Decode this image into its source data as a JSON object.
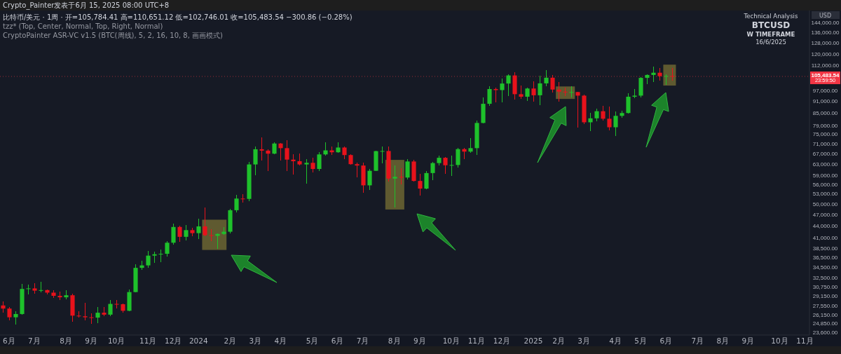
{
  "chart_data": {
    "type": "candlestick",
    "title": "Technical Analysis",
    "subtitle": "BTCUSD",
    "ylabel": "USD",
    "annotations": [
      "Crypto_Painter发表于6月 15, 2025 08:00 UTC+8",
      "比特币/美元 · 1周 · 开=105,784.41 高=110,651.12 低=102,746.01 收=105,483.54 −300.86 (−0.28%)",
      "tzz* (Top, Center, Normal, Top, Right, Normal)",
      "CryptoPainter ASR-VC v1.5 (BTC(周线), 5, 2, 16, 10, 8, 画画模式)",
      "W TIMEFRAME",
      "16/6/2025",
      "23:59:50"
    ],
    "x": [
      "2023-05-29",
      "2023-06-05",
      "2023-06-12",
      "2023-06-19",
      "2023-06-26",
      "2023-07-03",
      "2023-07-10",
      "2023-07-17",
      "2023-07-24",
      "2023-07-31",
      "2023-08-07",
      "2023-08-14",
      "2023-08-21",
      "2023-08-28",
      "2023-09-04",
      "2023-09-11",
      "2023-09-18",
      "2023-09-25",
      "2023-10-02",
      "2023-10-09",
      "2023-10-16",
      "2023-10-23",
      "2023-10-30",
      "2023-11-06",
      "2023-11-13",
      "2023-11-20",
      "2023-11-27",
      "2023-12-04",
      "2023-12-11",
      "2023-12-18",
      "2023-12-25",
      "2024-01-01",
      "2024-01-08",
      "2024-01-15",
      "2024-01-22",
      "2024-01-29",
      "2024-02-05",
      "2024-02-12",
      "2024-02-19",
      "2024-02-26",
      "2024-03-04",
      "2024-03-11",
      "2024-03-18",
      "2024-03-25",
      "2024-04-01",
      "2024-04-08",
      "2024-04-15",
      "2024-04-22",
      "2024-04-29",
      "2024-05-06",
      "2024-05-13",
      "2024-05-20",
      "2024-05-27",
      "2024-06-03",
      "2024-06-10",
      "2024-06-17",
      "2024-06-24",
      "2024-07-01",
      "2024-07-08",
      "2024-07-15",
      "2024-07-22",
      "2024-07-29",
      "2024-08-05",
      "2024-08-12",
      "2024-08-19",
      "2024-08-26",
      "2024-09-02",
      "2024-09-09",
      "2024-09-16",
      "2024-09-23",
      "2024-09-30",
      "2024-10-07",
      "2024-10-14",
      "2024-10-21",
      "2024-10-28",
      "2024-11-04",
      "2024-11-11",
      "2024-11-18",
      "2024-11-25",
      "2024-12-02",
      "2024-12-09",
      "2024-12-16",
      "2024-12-23",
      "2024-12-30",
      "2025-01-06",
      "2025-01-13",
      "2025-01-20",
      "2025-01-27",
      "2025-02-03",
      "2025-02-10",
      "2025-02-17",
      "2025-02-24",
      "2025-03-03",
      "2025-03-10",
      "2025-03-17",
      "2025-03-24",
      "2025-03-31",
      "2025-04-07",
      "2025-04-14",
      "2025-04-21",
      "2025-04-28",
      "2025-05-05",
      "2025-05-12",
      "2025-05-19",
      "2025-05-26",
      "2025-06-02",
      "2025-06-09"
    ],
    "ohlc": [
      [
        27700,
        28400,
        26600,
        27200
      ],
      [
        27200,
        27400,
        25350,
        25850
      ],
      [
        25850,
        26800,
        24800,
        26350
      ],
      [
        26350,
        31400,
        26250,
        30500
      ],
      [
        30500,
        31300,
        29500,
        30600
      ],
      [
        30600,
        31500,
        29700,
        30200
      ],
      [
        30200,
        31800,
        29950,
        30300
      ],
      [
        30300,
        30400,
        29500,
        29850
      ],
      [
        29850,
        30300,
        28900,
        29300
      ],
      [
        29300,
        30000,
        28600,
        29050
      ],
      [
        29050,
        30250,
        28700,
        29400
      ],
      [
        29400,
        29700,
        25200,
        26100
      ],
      [
        26100,
        26800,
        25800,
        26000
      ],
      [
        26000,
        28100,
        25350,
        25850
      ],
      [
        25850,
        26400,
        24900,
        25800
      ],
      [
        25800,
        27450,
        24950,
        26550
      ],
      [
        26550,
        27400,
        26000,
        26250
      ],
      [
        26250,
        28600,
        26000,
        27950
      ],
      [
        27950,
        28600,
        27200,
        27900
      ],
      [
        27900,
        28000,
        26550,
        26850
      ],
      [
        26850,
        30350,
        26800,
        29950
      ],
      [
        29950,
        35200,
        29900,
        34500
      ],
      [
        34500,
        35950,
        34100,
        35000
      ],
      [
        35000,
        38000,
        34550,
        37050
      ],
      [
        37050,
        37950,
        35500,
        37350
      ],
      [
        37350,
        38400,
        35700,
        37450
      ],
      [
        37450,
        40250,
        36800,
        39950
      ],
      [
        39950,
        44700,
        39500,
        43800
      ],
      [
        43800,
        44100,
        40200,
        41350
      ],
      [
        41350,
        44300,
        40500,
        43000
      ],
      [
        43000,
        43600,
        41500,
        42250
      ],
      [
        42250,
        45900,
        40750,
        43950
      ],
      [
        43950,
        49000,
        41500,
        41750
      ],
      [
        41750,
        43200,
        40300,
        41600
      ],
      [
        41600,
        42250,
        38550,
        42050
      ],
      [
        42050,
        43850,
        41850,
        42600
      ],
      [
        42600,
        48600,
        42250,
        48300
      ],
      [
        48300,
        52800,
        47700,
        51700
      ],
      [
        51700,
        52950,
        50600,
        51600
      ],
      [
        51600,
        64000,
        50900,
        63100
      ],
      [
        63100,
        70150,
        59200,
        68950
      ],
      [
        68950,
        73800,
        64600,
        68400
      ],
      [
        68400,
        68950,
        60800,
        67200
      ],
      [
        67200,
        71750,
        66900,
        71300
      ],
      [
        71300,
        71400,
        64500,
        69400
      ],
      [
        69400,
        72750,
        60700,
        64900
      ],
      [
        64900,
        66900,
        59600,
        64300
      ],
      [
        64300,
        67200,
        62800,
        63100
      ],
      [
        63100,
        65000,
        56500,
        63700
      ],
      [
        63700,
        65500,
        60200,
        61450
      ],
      [
        61450,
        67700,
        60700,
        66900
      ],
      [
        66900,
        71950,
        66300,
        68500
      ],
      [
        68500,
        70000,
        66600,
        67750
      ],
      [
        67750,
        71950,
        67600,
        69650
      ],
      [
        69650,
        70200,
        65100,
        66650
      ],
      [
        66650,
        66950,
        63000,
        63200
      ],
      [
        63200,
        63800,
        58400,
        62700
      ],
      [
        62700,
        63800,
        53500,
        55850
      ],
      [
        55850,
        61400,
        54300,
        60800
      ],
      [
        60800,
        68400,
        60600,
        68200
      ],
      [
        68200,
        70000,
        63500,
        68250
      ],
      [
        68250,
        70000,
        57200,
        58100
      ],
      [
        58100,
        62700,
        49000,
        58700
      ],
      [
        58700,
        61800,
        56100,
        58450
      ],
      [
        58450,
        65000,
        57800,
        64200
      ],
      [
        64200,
        64900,
        57100,
        57300
      ],
      [
        57300,
        59800,
        52600,
        54800
      ],
      [
        54800,
        60600,
        54500,
        60000
      ],
      [
        60000,
        64100,
        57500,
        63600
      ],
      [
        63600,
        66500,
        62700,
        65600
      ],
      [
        65600,
        66000,
        59800,
        62800
      ],
      [
        62800,
        66500,
        58900,
        62900
      ],
      [
        62900,
        69400,
        62000,
        69000
      ],
      [
        69000,
        69500,
        65200,
        68000
      ],
      [
        68000,
        73600,
        67500,
        69400
      ],
      [
        69400,
        81500,
        66800,
        80400
      ],
      [
        80400,
        93500,
        80200,
        89900
      ],
      [
        89900,
        99600,
        88800,
        98000
      ],
      [
        98000,
        98800,
        90800,
        97400
      ],
      [
        97400,
        104000,
        90500,
        101200
      ],
      [
        101200,
        106600,
        94200,
        106100
      ],
      [
        106100,
        108300,
        92100,
        95100
      ],
      [
        95100,
        99900,
        92500,
        93700
      ],
      [
        93700,
        98900,
        91300,
        98300
      ],
      [
        98300,
        102700,
        91200,
        94500
      ],
      [
        94500,
        106000,
        89200,
        101300
      ],
      [
        101300,
        109600,
        99500,
        104700
      ],
      [
        104700,
        106400,
        96200,
        97700
      ],
      [
        97700,
        102000,
        91200,
        96500
      ],
      [
        96500,
        98800,
        94100,
        96100
      ],
      [
        96100,
        99500,
        93300,
        96300
      ],
      [
        96300,
        96500,
        78200,
        94300
      ],
      [
        94300,
        95000,
        80000,
        80700
      ],
      [
        80700,
        85300,
        76600,
        82600
      ],
      [
        82600,
        87500,
        81200,
        86100
      ],
      [
        86100,
        88800,
        81600,
        82400
      ],
      [
        82400,
        88500,
        77100,
        78400
      ],
      [
        78400,
        86100,
        74500,
        83800
      ],
      [
        83800,
        86400,
        83000,
        85200
      ],
      [
        85200,
        95700,
        85000,
        93700
      ],
      [
        93700,
        97900,
        92800,
        94300
      ],
      [
        94300,
        104900,
        93400,
        104600
      ],
      [
        104600,
        106700,
        100800,
        106400
      ],
      [
        106400,
        111900,
        102000,
        107800
      ],
      [
        107800,
        110700,
        103100,
        105650
      ],
      [
        105650,
        106800,
        100400,
        105784.41
      ],
      [
        105784.41,
        110651.12,
        102746.01,
        105483.54
      ]
    ],
    "colors": [
      "#e8121b",
      "#e8121b",
      "#1ec12b",
      "#1ec12b",
      "#1ec12b",
      "#e8121b",
      "#1ec12b",
      "#e8121b",
      "#e8121b",
      "#e8121b",
      "#1ec12b",
      "#e8121b",
      "#e8121b",
      "#e8121b",
      "#e8121b",
      "#1ec12b",
      "#e8121b",
      "#1ec12b",
      "#e8121b",
      "#e8121b",
      "#1ec12b",
      "#1ec12b",
      "#1ec12b",
      "#1ec12b",
      "#1ec12b",
      "#1ec12b",
      "#1ec12b",
      "#1ec12b",
      "#e8121b",
      "#1ec12b",
      "#e8121b",
      "#1ec12b",
      "#e8121b",
      "#e8121b",
      "#1ec12b",
      "#1ec12b",
      "#1ec12b",
      "#1ec12b",
      "#e8121b",
      "#1ec12b",
      "#1ec12b",
      "#e8121b",
      "#e8121b",
      "#1ec12b",
      "#e8121b",
      "#e8121b",
      "#e8121b",
      "#e8121b",
      "#1ec12b",
      "#e8121b",
      "#1ec12b",
      "#1ec12b",
      "#e8121b",
      "#1ec12b",
      "#e8121b",
      "#e8121b",
      "#e8121b",
      "#e8121b",
      "#1ec12b",
      "#1ec12b",
      "#1ec12b",
      "#e8121b",
      "#1ec12b",
      "#e8121b",
      "#1ec12b",
      "#e8121b",
      "#e8121b",
      "#1ec12b",
      "#1ec12b",
      "#1ec12b",
      "#e8121b",
      "#1ec12b",
      "#1ec12b",
      "#e8121b",
      "#1ec12b",
      "#1ec12b",
      "#1ec12b",
      "#1ec12b",
      "#e8121b",
      "#1ec12b",
      "#1ec12b",
      "#e8121b",
      "#e8121b",
      "#1ec12b",
      "#e8121b",
      "#1ec12b",
      "#1ec12b",
      "#e8121b",
      "#e8121b",
      "#e8121b",
      "#1ec12b",
      "#e8121b",
      "#e8121b",
      "#1ec12b",
      "#1ec12b",
      "#e8121b",
      "#e8121b",
      "#1ec12b",
      "#1ec12b",
      "#1ec12b",
      "#1ec12b",
      "#1ec12b",
      "#1ec12b",
      "#1ec12b",
      "#e8121b",
      "#1ec12b",
      "#e8121b"
    ],
    "xlim": [
      "2023-05-26",
      "2025-11-08"
    ],
    "xticks": [
      {
        "value": "2023-06-05",
        "label": "6月"
      },
      {
        "value": "2023-07-03",
        "label": "7月"
      },
      {
        "value": "2023-08-07",
        "label": "8月"
      },
      {
        "value": "2023-09-04",
        "label": "9月"
      },
      {
        "value": "2023-10-02",
        "label": "10月"
      },
      {
        "value": "2023-11-06",
        "label": "11月"
      },
      {
        "value": "2023-12-04",
        "label": "12月"
      },
      {
        "value": "2024-01-01",
        "label": "2024"
      },
      {
        "value": "2024-02-05",
        "label": "2月"
      },
      {
        "value": "2024-03-04",
        "label": "3月"
      },
      {
        "value": "2024-04-01",
        "label": "4月"
      },
      {
        "value": "2024-05-06",
        "label": "5月"
      },
      {
        "value": "2024-06-03",
        "label": "6月"
      },
      {
        "value": "2024-07-01",
        "label": "7月"
      },
      {
        "value": "2024-08-05",
        "label": "8月"
      },
      {
        "value": "2024-09-02",
        "label": "9月"
      },
      {
        "value": "2024-10-07",
        "label": "10月"
      },
      {
        "value": "2024-11-04",
        "label": "11月"
      },
      {
        "value": "2024-12-02",
        "label": "12月"
      },
      {
        "value": "2025-01-06",
        "label": "2025"
      },
      {
        "value": "2025-02-03",
        "label": "2月"
      },
      {
        "value": "2025-03-03",
        "label": "3月"
      },
      {
        "value": "2025-04-07",
        "label": "4月"
      },
      {
        "value": "2025-05-05",
        "label": "5月"
      },
      {
        "value": "2025-06-02",
        "label": "6月"
      },
      {
        "value": "2025-07-07",
        "label": "7月"
      },
      {
        "value": "2025-08-04",
        "label": "8月"
      },
      {
        "value": "2025-09-01",
        "label": "9月"
      },
      {
        "value": "2025-10-06",
        "label": "10月"
      },
      {
        "value": "2025-11-03",
        "label": "11月"
      }
    ],
    "ylim": [
      23300,
      155000
    ],
    "log": "y",
    "yticks": [
      {
        "value": 144000,
        "label": "144,000.00"
      },
      {
        "value": 136000,
        "label": "136,000.00"
      },
      {
        "value": 128000,
        "label": "128,000.00"
      },
      {
        "value": 120000,
        "label": "120,000.00"
      },
      {
        "value": 112000,
        "label": "112,000.00"
      },
      {
        "value": 97000,
        "label": "97,000.00"
      },
      {
        "value": 91000,
        "label": "91,000.00"
      },
      {
        "value": 85000,
        "label": "85,000.00"
      },
      {
        "value": 79000,
        "label": "79,000.00"
      },
      {
        "value": 75000,
        "label": "75,000.00"
      },
      {
        "value": 71000,
        "label": "71,000.00"
      },
      {
        "value": 67000,
        "label": "67,000.00"
      },
      {
        "value": 63000,
        "label": "63,000.00"
      },
      {
        "value": 59000,
        "label": "59,000.00"
      },
      {
        "value": 56000,
        "label": "56,000.00"
      },
      {
        "value": 53000,
        "label": "53,000.00"
      },
      {
        "value": 50000,
        "label": "50,000.00"
      },
      {
        "value": 47000,
        "label": "47,000.00"
      },
      {
        "value": 44000,
        "label": "44,000.00"
      },
      {
        "value": 41000,
        "label": "41,000.00"
      },
      {
        "value": 38500,
        "label": "38,500.00"
      },
      {
        "value": 36500,
        "label": "36,500.00"
      },
      {
        "value": 34500,
        "label": "34,500.00"
      },
      {
        "value": 32500,
        "label": "32,500.00"
      },
      {
        "value": 30750,
        "label": "30,750.00"
      },
      {
        "value": 29150,
        "label": "29,150.00"
      },
      {
        "value": 27550,
        "label": "27,550.00"
      },
      {
        "value": 26150,
        "label": "26,150.00"
      },
      {
        "value": 24850,
        "label": "24,850.00"
      },
      {
        "value": 23600,
        "label": "23,600.00"
      }
    ],
    "ref_lines": [
      {
        "axis": "y",
        "value": 105483.54,
        "label": "105,483.54",
        "color": "#f23645",
        "line_style": "dotted"
      }
    ]
  }
}
